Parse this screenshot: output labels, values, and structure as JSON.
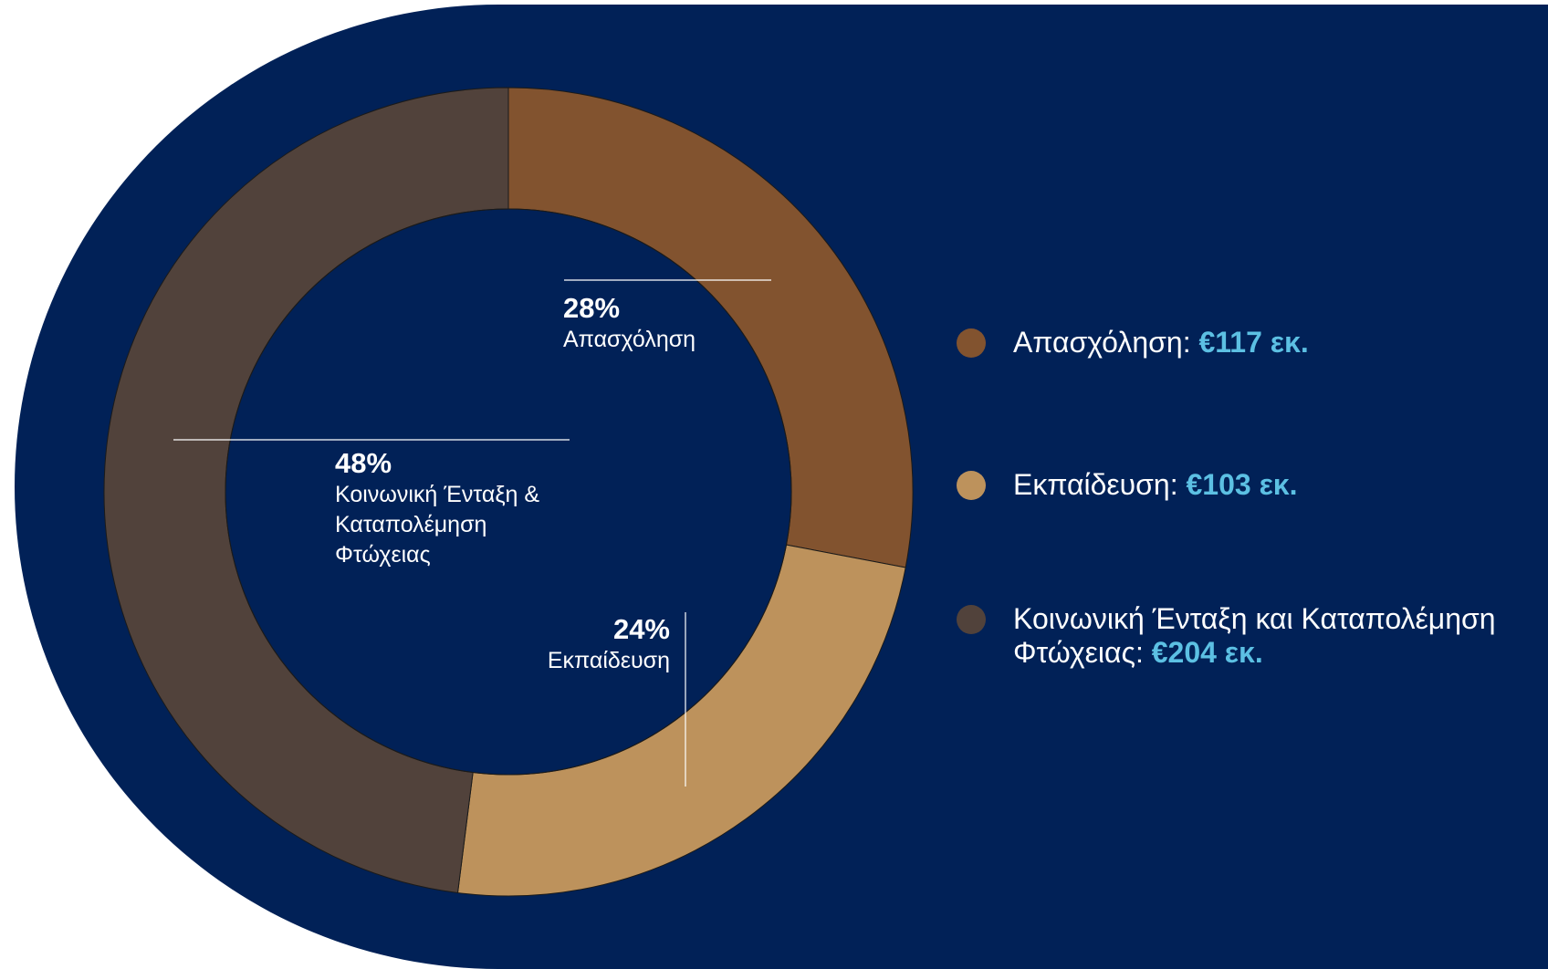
{
  "chart_data": {
    "type": "donut",
    "categories": [
      "Απασχόληση",
      "Εκπαίδευση",
      "Κοινωνική Ένταξη & Καταπολέμηση Φτώχειας"
    ],
    "values": [
      28,
      24,
      48
    ],
    "value_labels": [
      "28%",
      "24%",
      "48%"
    ],
    "colors": [
      "#82532f",
      "#bd925c",
      "#51423b"
    ],
    "legend_labels": [
      "Απασχόληση:",
      "Εκπαίδευση:",
      "Κοινωνική Ένταξη και Καταπολέμηση Φτώχειας:"
    ],
    "amounts": [
      117,
      103,
      204
    ],
    "amount_labels": [
      "€117 εκ.",
      "€103 εκ.",
      "€204 εκ."
    ]
  }
}
